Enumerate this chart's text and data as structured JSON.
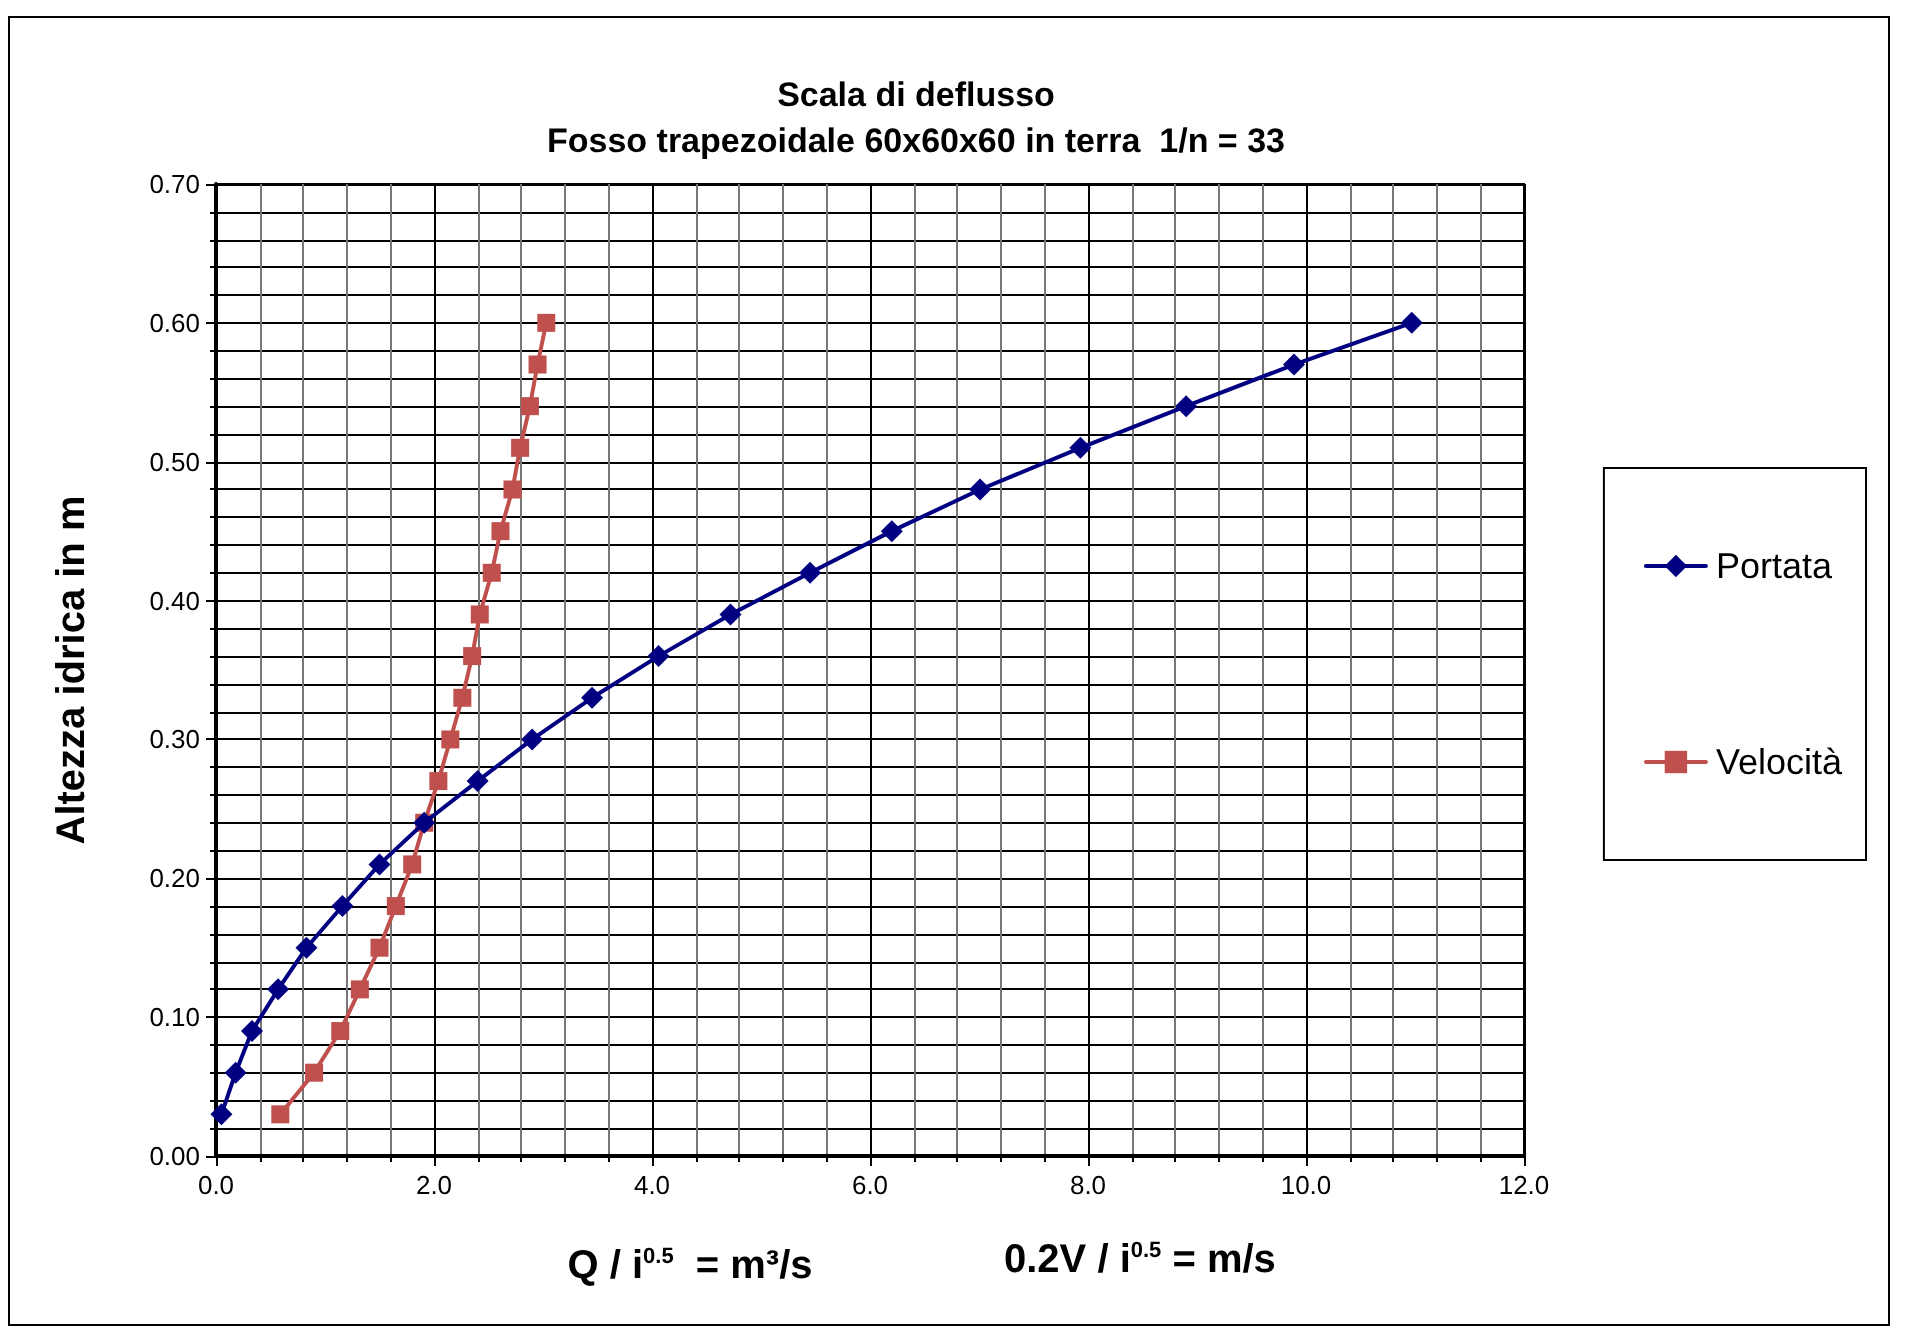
{
  "chart_data": {
    "type": "line",
    "title": "Scala di deflusso",
    "subtitle": "Fosso trapezoidale 60x60x60 in terra  1/n = 33",
    "xlabel": "Q / i$^{0.5}$  = m³/s",
    "ylabel": "Altezza idrica in m",
    "annotations": [
      "0.2V / i$^{0.5}$ = m/s"
    ],
    "series": [
      {
        "name": "Portata",
        "color": "#000080",
        "marker": "diamond",
        "x": [
          0.05,
          0.18,
          0.33,
          0.57,
          0.83,
          1.16,
          1.5,
          1.91,
          2.4,
          2.9,
          3.45,
          4.06,
          4.72,
          5.45,
          6.2,
          7.01,
          7.93,
          8.9,
          9.89,
          10.97
        ],
        "values": [
          0.03,
          0.06,
          0.09,
          0.12,
          0.15,
          0.18,
          0.21,
          0.24,
          0.27,
          0.3,
          0.33,
          0.36,
          0.39,
          0.42,
          0.45,
          0.48,
          0.51,
          0.54,
          0.57,
          0.6
        ]
      },
      {
        "name": "Velocità",
        "color": "#c0504d",
        "marker": "square",
        "x": [
          0.59,
          0.9,
          1.14,
          1.32,
          1.5,
          1.65,
          1.8,
          1.91,
          2.04,
          2.15,
          2.26,
          2.35,
          2.42,
          2.53,
          2.61,
          2.72,
          2.79,
          2.88,
          2.95,
          3.03
        ],
        "values": [
          0.03,
          0.06,
          0.09,
          0.12,
          0.15,
          0.18,
          0.21,
          0.24,
          0.27,
          0.3,
          0.33,
          0.36,
          0.39,
          0.42,
          0.45,
          0.48,
          0.51,
          0.54,
          0.57,
          0.6
        ]
      }
    ],
    "xlim": [
      0,
      12
    ],
    "xticks": [
      {
        "value": 0,
        "label": "0.0"
      },
      {
        "value": 2,
        "label": "2.0"
      },
      {
        "value": 4,
        "label": "4.0"
      },
      {
        "value": 6,
        "label": "6.0"
      },
      {
        "value": 8,
        "label": "8.0"
      },
      {
        "value": 10,
        "label": "10.0"
      },
      {
        "value": 12,
        "label": "12.0"
      }
    ],
    "ylim": [
      0,
      0.7
    ],
    "yticks": [
      {
        "value": 0,
        "label": "0.00"
      },
      {
        "value": 0.1,
        "label": "0.10"
      },
      {
        "value": 0.2,
        "label": "0.20"
      },
      {
        "value": 0.3,
        "label": "0.30"
      },
      {
        "value": 0.4,
        "label": "0.40"
      },
      {
        "value": 0.5,
        "label": "0.50"
      },
      {
        "value": 0.6,
        "label": "0.60"
      },
      {
        "value": 0.7,
        "label": "0.70"
      }
    ],
    "grid": true,
    "legend": "right",
    "line_style": "solid"
  }
}
